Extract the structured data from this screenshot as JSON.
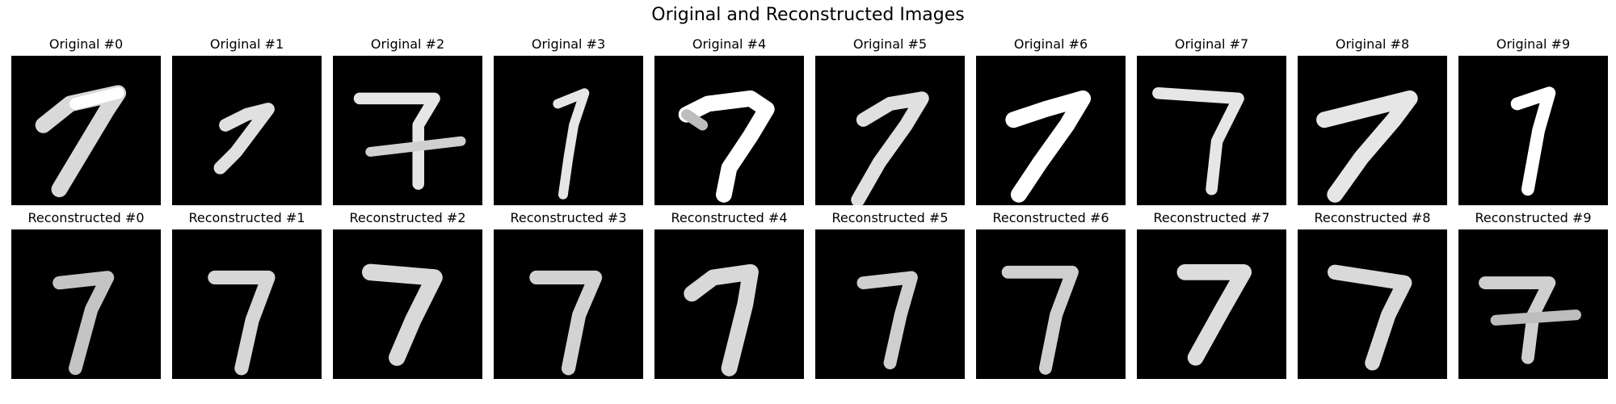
{
  "figure": {
    "title": "Original and Reconstructed Images"
  },
  "rows": [
    {
      "key": "original",
      "panels": [
        {
          "label": "Original #0",
          "digit": "7"
        },
        {
          "label": "Original #1",
          "digit": "7"
        },
        {
          "label": "Original #2",
          "digit": "7"
        },
        {
          "label": "Original #3",
          "digit": "7"
        },
        {
          "label": "Original #4",
          "digit": "7"
        },
        {
          "label": "Original #5",
          "digit": "7"
        },
        {
          "label": "Original #6",
          "digit": "7"
        },
        {
          "label": "Original #7",
          "digit": "7"
        },
        {
          "label": "Original #8",
          "digit": "7"
        },
        {
          "label": "Original #9",
          "digit": "7"
        }
      ]
    },
    {
      "key": "reconstructed",
      "panels": [
        {
          "label": "Reconstructed #0",
          "digit": "7"
        },
        {
          "label": "Reconstructed #1",
          "digit": "7"
        },
        {
          "label": "Reconstructed #2",
          "digit": "7"
        },
        {
          "label": "Reconstructed #3",
          "digit": "7"
        },
        {
          "label": "Reconstructed #4",
          "digit": "7"
        },
        {
          "label": "Reconstructed #5",
          "digit": "7"
        },
        {
          "label": "Reconstructed #6",
          "digit": "7"
        },
        {
          "label": "Reconstructed #7",
          "digit": "7"
        },
        {
          "label": "Reconstructed #8",
          "digit": "7"
        },
        {
          "label": "Reconstructed #9",
          "digit": "7"
        }
      ]
    }
  ]
}
